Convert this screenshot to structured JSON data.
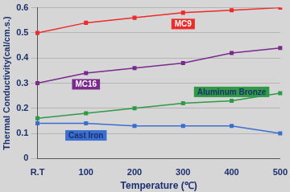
{
  "chart_data": {
    "type": "line",
    "x_label": "Temperature (℃)",
    "y_label": "Thermal Conductivity(cal/cm.s.)",
    "categories": [
      "R.T",
      "100",
      "200",
      "300",
      "400",
      "500"
    ],
    "series": [
      {
        "name": "MC9",
        "color": "#ee2a2a",
        "marker": "square",
        "values": [
          0.5,
          0.54,
          0.56,
          0.58,
          0.59,
          0.6
        ]
      },
      {
        "name": "MC16",
        "color": "#7a2a8c",
        "marker": "square",
        "values": [
          0.3,
          0.34,
          0.36,
          0.38,
          0.42,
          0.44
        ]
      },
      {
        "name": "Aluminum Bronze",
        "color": "#2e9a46",
        "marker": "square",
        "values": [
          0.16,
          0.18,
          0.2,
          0.22,
          0.23,
          0.26
        ]
      },
      {
        "name": "Cast Iron",
        "color": "#3a6ed0",
        "marker": "square",
        "values": [
          0.14,
          0.14,
          0.13,
          0.13,
          0.13,
          0.1
        ]
      }
    ],
    "ylim": [
      0,
      0.6
    ],
    "yticks": [
      0,
      0.1,
      0.2,
      0.3,
      0.4,
      0.5,
      0.6
    ],
    "grid": true
  }
}
